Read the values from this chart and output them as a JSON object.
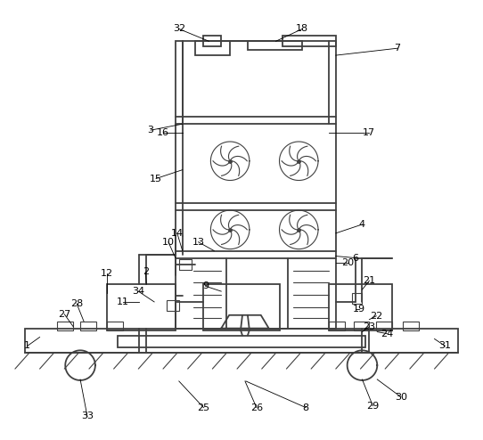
{
  "bg_color": "#ffffff",
  "line_color": "#404040",
  "lw": 1.3,
  "tlw": 0.8,
  "fs": 8.0,
  "fig_w": 5.42,
  "fig_h": 4.94
}
